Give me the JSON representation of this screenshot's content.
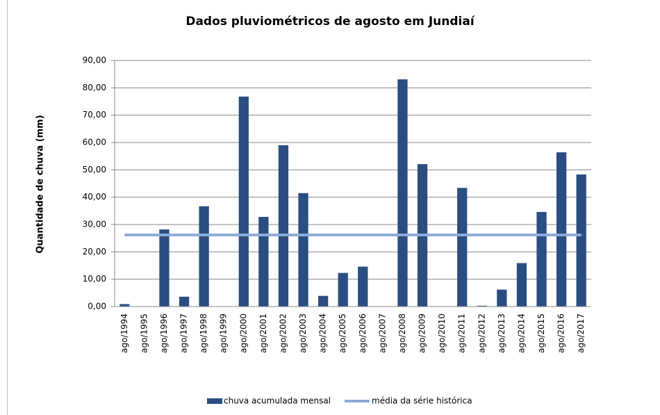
{
  "chart_data": {
    "type": "bar",
    "title": "Dados pluviométricos de agosto em Jundiaí",
    "y_label": "Quantidade de chuva (mm)",
    "categories": [
      "ago/1994",
      "ago/1995",
      "ago/1996",
      "ago/1997",
      "ago/1998",
      "ago/1999",
      "ago/2000",
      "ago/2001",
      "ago/2002",
      "ago/2003",
      "ago/2004",
      "ago/2005",
      "ago/2006",
      "ago/2007",
      "ago/2008",
      "ago/2009",
      "ago/2010",
      "ago/2011",
      "ago/2012",
      "ago/2013",
      "ago/2014",
      "ago/2015",
      "ago/2016",
      "ago/2017"
    ],
    "series": [
      {
        "name": "chuva acumulada mensal",
        "type": "bar",
        "color": "#2a4e82",
        "values": [
          0.9,
          0,
          28.2,
          3.6,
          36.7,
          0,
          76.8,
          32.8,
          59.0,
          41.5,
          3.9,
          12.3,
          14.6,
          0,
          83.1,
          52.1,
          0,
          43.4,
          0.3,
          6.2,
          15.9,
          34.6,
          56.4,
          48.3
        ]
      },
      {
        "name": "média da série histórica",
        "type": "line",
        "color": "#8eaad6",
        "values": [
          26.2,
          26.2,
          26.2,
          26.2,
          26.2,
          26.2,
          26.2,
          26.2,
          26.2,
          26.2,
          26.2,
          26.2,
          26.2,
          26.2,
          26.2,
          26.2,
          26.2,
          26.2,
          26.2,
          26.2,
          26.2,
          26.2,
          26.2,
          26.2
        ]
      }
    ],
    "ylim": [
      0,
      90
    ],
    "yticks": [
      {
        "value": 0,
        "label": "0,00"
      },
      {
        "value": 10,
        "label": "10,00"
      },
      {
        "value": 20,
        "label": "20,00"
      },
      {
        "value": 30,
        "label": "30,00"
      },
      {
        "value": 40,
        "label": "40,00"
      },
      {
        "value": 50,
        "label": "50,00"
      },
      {
        "value": 60,
        "label": "60,00"
      },
      {
        "value": 70,
        "label": "70,00"
      },
      {
        "value": 80,
        "label": "80,00"
      },
      {
        "value": 90,
        "label": "90,00"
      }
    ],
    "grid": true,
    "legend": "bottom"
  }
}
